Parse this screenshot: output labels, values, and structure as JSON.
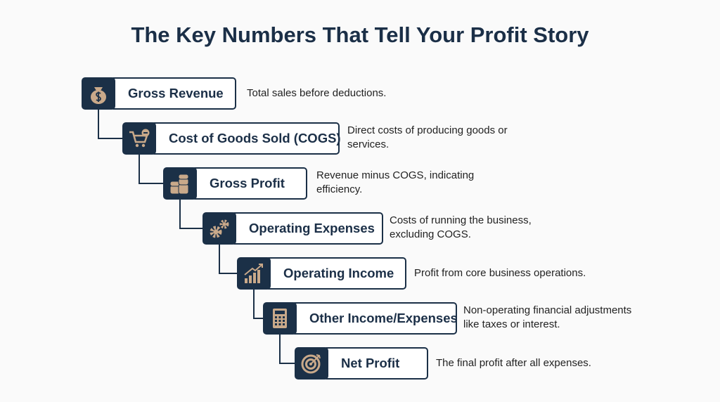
{
  "title": "The Key Numbers That Tell Your Profit Story",
  "steps": [
    {
      "label": "Gross Revenue",
      "description": "Total sales before deductions."
    },
    {
      "label": "Cost of Goods Sold (COGS)",
      "description": "Direct costs of producing goods or services."
    },
    {
      "label": "Gross Profit",
      "description": "Revenue minus COGS, indicating efficiency."
    },
    {
      "label": "Operating Expenses",
      "description": "Costs of running the business, excluding COGS."
    },
    {
      "label": "Operating Income",
      "description": "Profit from core business operations."
    },
    {
      "label": "Other Income/Expenses",
      "description": "Non-operating financial adjustments like taxes or interest."
    },
    {
      "label": "Net Profit",
      "description": "The final profit after all expenses."
    }
  ]
}
